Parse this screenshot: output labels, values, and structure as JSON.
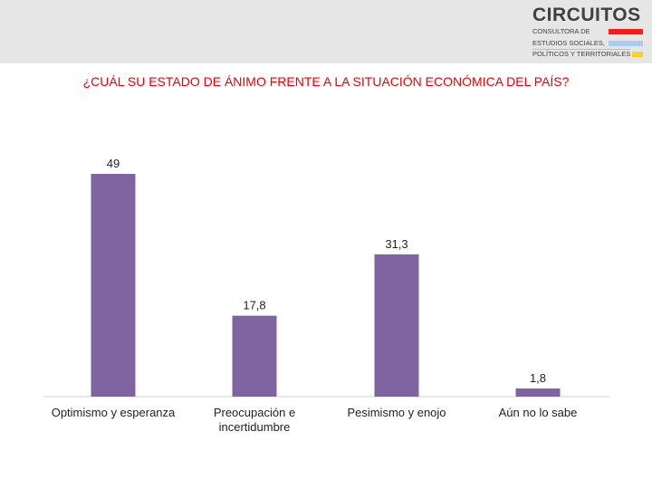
{
  "logo": {
    "name": "CIRCUITOS",
    "line1": "CONSULTORA DE",
    "line2": "ESTUDIOS SOCIALES,",
    "line3": "POLÍTICOS Y TERRITORIALES",
    "colors": [
      "#ff1a1a",
      "#a9cdf0",
      "#ffd21a"
    ]
  },
  "chart_data": {
    "type": "bar",
    "title": "¿CUÁL SU ESTADO DE ÁNIMO FRENTE A LA SITUACIÓN ECONÓMICA DEL PAÍS?",
    "categories": [
      [
        "Optimismo y esperanza"
      ],
      [
        "Preocupación e",
        "incertidumbre"
      ],
      [
        "Pesimismo y enojo"
      ],
      [
        "Aún no lo sabe"
      ]
    ],
    "values": [
      49,
      17.8,
      31.3,
      1.8
    ],
    "value_labels": [
      "49",
      "17,8",
      "31,3",
      "1,8"
    ],
    "bar_color": "#8064a2",
    "title_color": "#ee0000",
    "ylim": [
      0,
      49
    ],
    "grid": false,
    "legend": "none"
  }
}
